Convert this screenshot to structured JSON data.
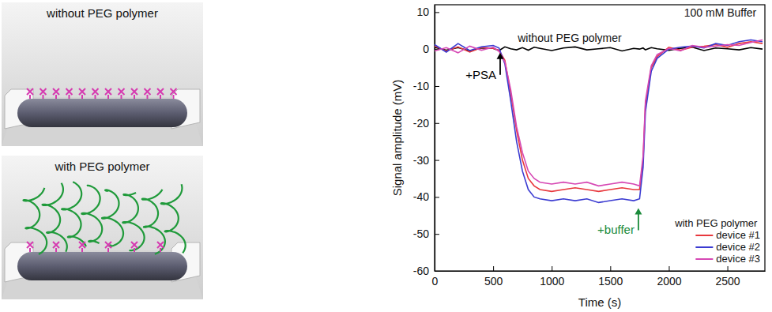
{
  "chart_data": {
    "type": "line",
    "x_label": "Time (s)",
    "y_label": "Signal amplitude (mV)",
    "xlim": [
      0,
      2820
    ],
    "xticks": [
      0,
      500,
      1000,
      1500,
      2000,
      2500
    ],
    "ylim": [
      -60,
      12
    ],
    "yticks": [
      -60,
      -50,
      -40,
      -30,
      -20,
      -10,
      0,
      10
    ],
    "grid": false,
    "legend": "lower right",
    "legend_title": "with PEG polymer",
    "x": [
      0,
      100,
      200,
      300,
      400,
      500,
      550,
      600,
      650,
      700,
      750,
      800,
      850,
      900,
      1000,
      1100,
      1200,
      1300,
      1400,
      1500,
      1600,
      1700,
      1750,
      1780,
      1800,
      1850,
      1900,
      2000,
      2100,
      2200,
      2300,
      2400,
      2500,
      2600,
      2700,
      2800
    ],
    "series": [
      {
        "color": "#000000",
        "values": [
          0.5,
          -0.3,
          0.4,
          -0.5,
          0.3,
          0.2,
          -0.4,
          0.6,
          0.1,
          -0.2,
          0.4,
          -0.3,
          0.5,
          0.2,
          -0.4,
          0.3,
          0.6,
          -0.2,
          0.1,
          0.4,
          -0.5,
          0.2,
          0.0,
          0.3,
          -0.2,
          0.4,
          0.1,
          -0.3,
          0.2,
          0.5,
          -0.4,
          0.3,
          0.1,
          -0.2,
          0.4,
          0.0
        ]
      },
      {
        "name": "device #1",
        "color": "#e8383d",
        "values": [
          0.8,
          -0.5,
          0.6,
          -0.8,
          0.4,
          0.2,
          -0.3,
          -3,
          -12,
          -22,
          -30,
          -35,
          -37,
          -38,
          -38.5,
          -38,
          -37.5,
          -38,
          -38.5,
          -38,
          -37.5,
          -38,
          -38,
          -30,
          -15,
          -5,
          -2,
          0.5,
          -0.3,
          0.5,
          0.8,
          1.2,
          0.5,
          1.5,
          2,
          1.5
        ]
      },
      {
        "name": "device #2",
        "color": "#3b3bd1",
        "values": [
          1.2,
          -0.8,
          1.5,
          -0.4,
          0.6,
          1,
          0.3,
          -4,
          -14,
          -25,
          -33,
          -38,
          -40,
          -40.5,
          -41,
          -40.5,
          -41,
          -40.5,
          -41.5,
          -41,
          -40.5,
          -41,
          -40.5,
          -32,
          -17,
          -6,
          -2.5,
          0,
          0.5,
          0.8,
          0.3,
          1.5,
          1,
          2,
          2.5,
          2
        ]
      },
      {
        "name": "device #3",
        "color": "#d648b4",
        "values": [
          -0.5,
          0.4,
          -1,
          0.8,
          -0.3,
          0.5,
          -0.6,
          -3.5,
          -11,
          -21,
          -28,
          -33,
          -35,
          -36,
          -36.5,
          -36,
          -36.5,
          -36,
          -37,
          -36.5,
          -36,
          -36.5,
          -37,
          -29,
          -14,
          -4.5,
          -1.5,
          0.2,
          -0.5,
          1,
          0.5,
          0.8,
          1.2,
          1,
          1.8,
          2.5
        ]
      }
    ],
    "annotations": [
      {
        "text": "without PEG polymer",
        "x": 710,
        "y": 2
      },
      {
        "text": "100 mM Buffer",
        "x": 2130,
        "y": 8.9
      }
    ],
    "arrows": [
      {
        "text": "+PSA",
        "x": 560,
        "y": -1,
        "color": "#000000"
      },
      {
        "text": "+buffer",
        "x": 1740,
        "y": -43,
        "color": "#1a8a3a"
      }
    ]
  },
  "schematic": {
    "panels": [
      {
        "title": "without PEG polymer"
      },
      {
        "title": "with PEG polymer"
      }
    ]
  }
}
